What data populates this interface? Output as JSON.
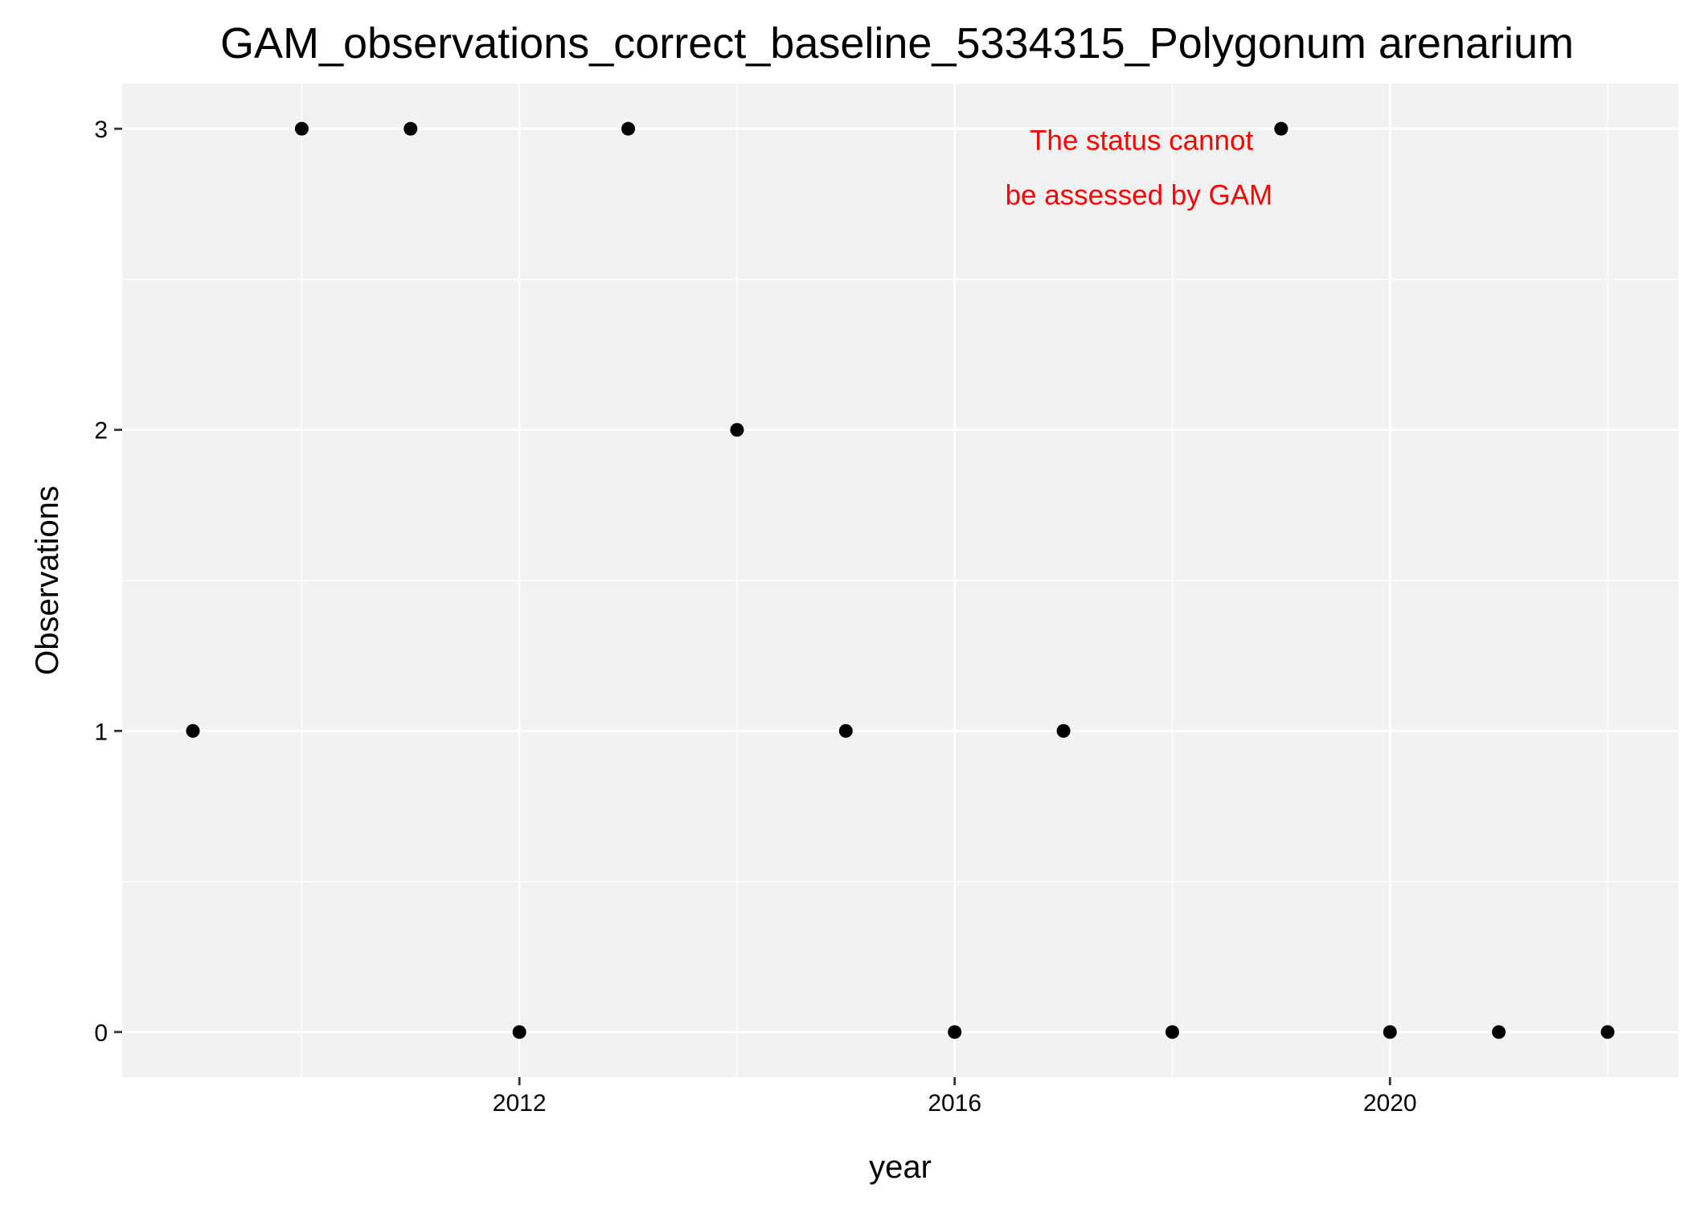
{
  "chart_data": {
    "type": "scatter",
    "title": "GAM_observations_correct_baseline_5334315_Polygonum arenarium",
    "xlabel": "year",
    "ylabel": "Observations",
    "x": [
      2009,
      2010,
      2011,
      2012,
      2013,
      2014,
      2015,
      2016,
      2017,
      2018,
      2019,
      2020,
      2021,
      2022
    ],
    "y": [
      1,
      3,
      3,
      0,
      3,
      2,
      1,
      0,
      1,
      0,
      3,
      0,
      0,
      0
    ],
    "xlim": [
      2008.35,
      2022.65
    ],
    "ylim": [
      -0.15,
      3.15
    ],
    "x_ticks": [
      2012,
      2016,
      2020
    ],
    "y_ticks": [
      0,
      1,
      2,
      3
    ],
    "x_tick_labels": [
      "2012",
      "2016",
      "2020"
    ],
    "y_tick_labels": [
      "0",
      "1",
      "2",
      "3"
    ],
    "grid": true,
    "point_color": "#000000",
    "panel_background": "#f2f2f2",
    "grid_color": "#ffffff",
    "annotation": {
      "lines": [
        "The status cannot",
        "be assessed by GAM"
      ],
      "color": "#ff0000",
      "x": 2018.7,
      "y": 2.93
    }
  }
}
